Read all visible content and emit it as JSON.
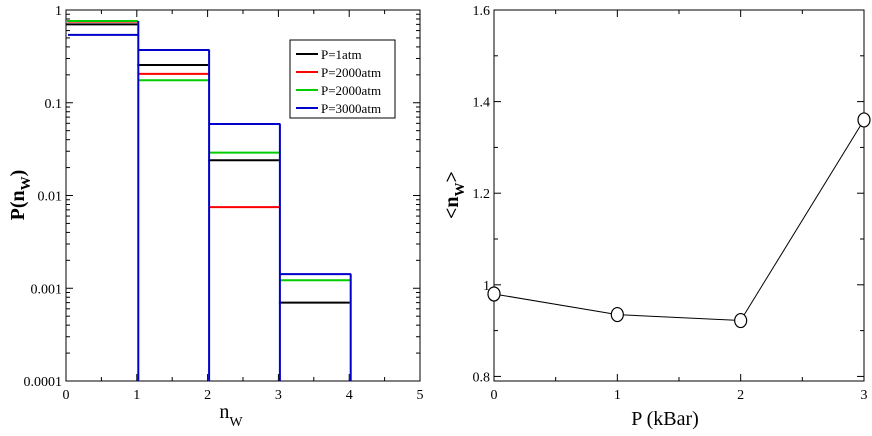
{
  "chart_data": [
    {
      "type": "histogram",
      "xlabel": "n",
      "xlabel_sub": "W",
      "ylabel": "P(n",
      "ylabel_sub": "W",
      "ylabel_close": ")",
      "xlim": [
        0,
        5
      ],
      "ylim": [
        0.0001,
        1
      ],
      "yscale": "log",
      "x_ticks": [
        "0",
        "1",
        "2",
        "3",
        "4",
        "5"
      ],
      "y_ticks": [
        "0.0001",
        "0.001",
        "0.01",
        "0.1",
        "1"
      ],
      "bins": [
        [
          0,
          1
        ],
        [
          1,
          2
        ],
        [
          2,
          3
        ],
        [
          3,
          4
        ]
      ],
      "legend_position": "top-right",
      "series": [
        {
          "name": "P=1atm",
          "color": "#000000",
          "values": [
            0.7,
            0.255,
            0.024,
            0.0007
          ]
        },
        {
          "name": "P=2000atm",
          "color": "#ff0000",
          "values": [
            0.75,
            0.205,
            0.0075,
            0.0
          ]
        },
        {
          "name": "P=2000atm",
          "color": "#00cc00",
          "values": [
            0.76,
            0.175,
            0.029,
            0.00122
          ]
        },
        {
          "name": "P=3000atm",
          "color": "#0000cc",
          "values": [
            0.54,
            0.37,
            0.059,
            0.00142
          ]
        }
      ]
    },
    {
      "type": "line",
      "xlabel": "P (kBar)",
      "ylabel": "<n",
      "ylabel_sub": "W",
      "ylabel_close": ">",
      "xlim": [
        0,
        3
      ],
      "ylim": [
        0.79,
        1.6
      ],
      "x_ticks": [
        "0",
        "1",
        "2",
        "3"
      ],
      "y_ticks": [
        "0.8",
        "1",
        "1.2",
        "1.4",
        "1.6"
      ],
      "series": [
        {
          "color": "#000000",
          "marker": "open-circle",
          "x": [
            0,
            1,
            2,
            3
          ],
          "y": [
            0.98,
            0.935,
            0.922,
            1.36
          ]
        }
      ]
    }
  ]
}
